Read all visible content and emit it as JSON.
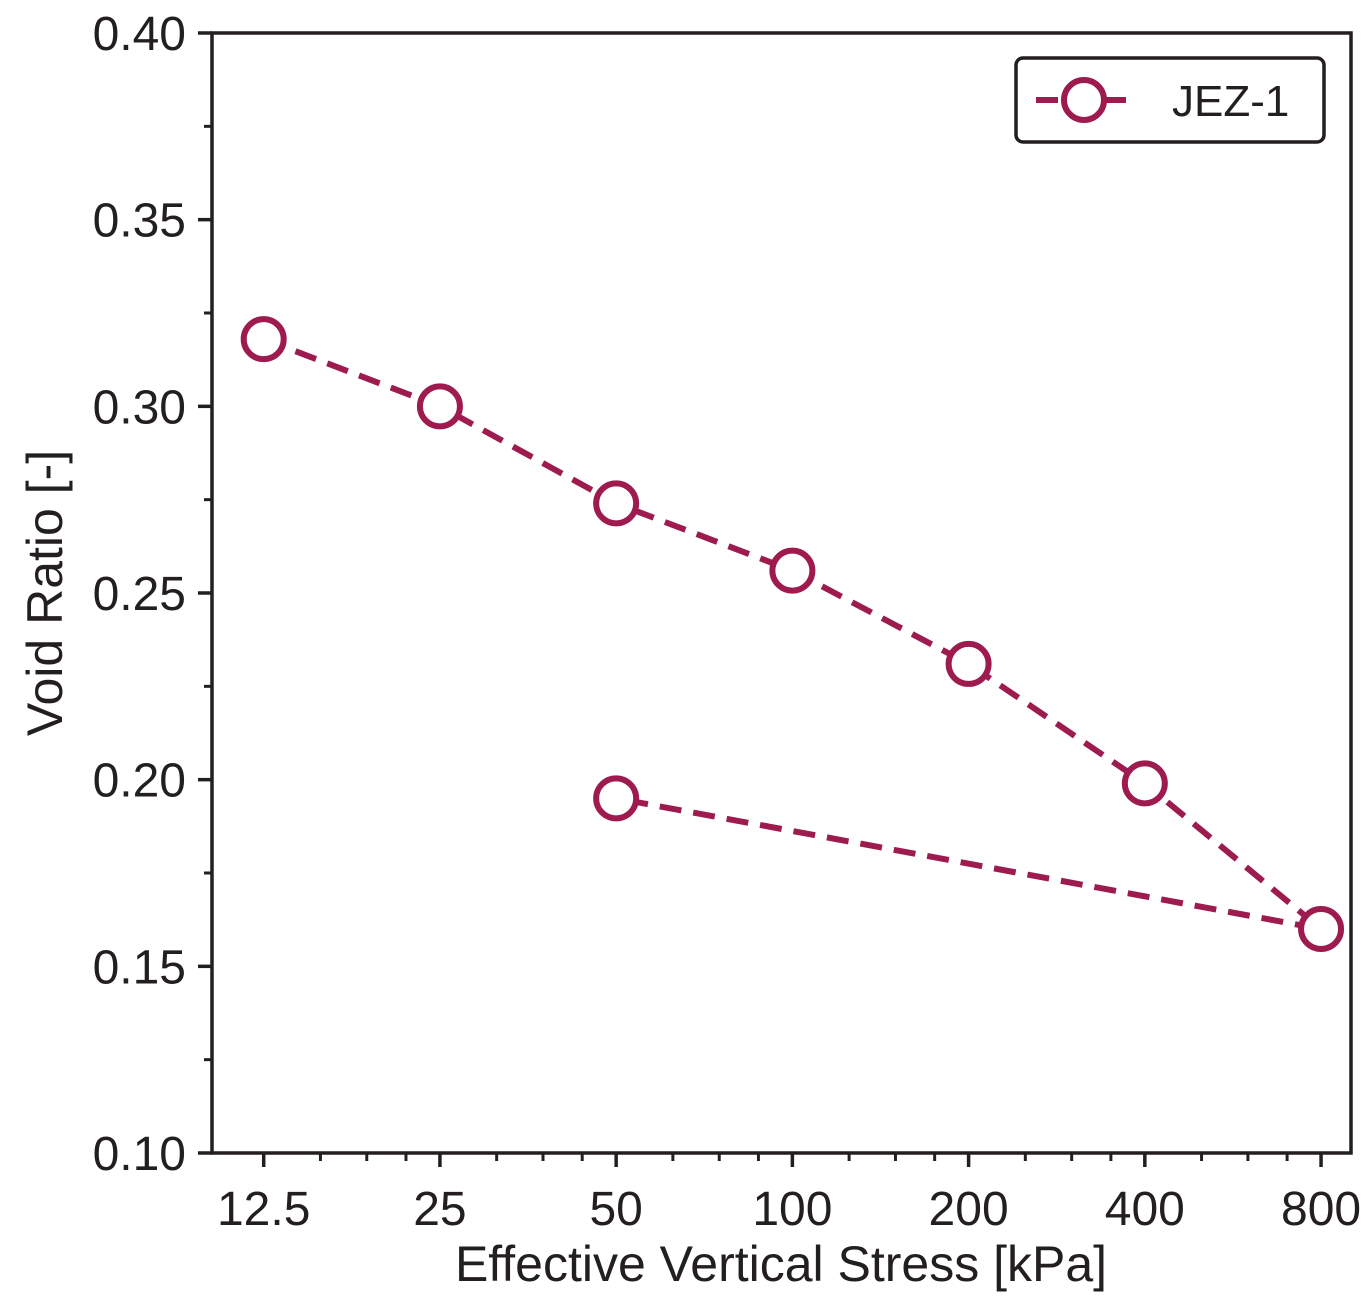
{
  "chart_data": {
    "type": "line",
    "title": "",
    "xlabel": "Effective Vertical Stress [kPa]",
    "ylabel": "Void Ratio [-]",
    "xscale": "log2",
    "xlim": [
      10.2,
      900
    ],
    "ylim": [
      0.1,
      0.4
    ],
    "xticks": [
      12.5,
      25,
      50,
      100,
      200,
      400,
      800
    ],
    "xtick_labels": [
      "12.5",
      "25",
      "50",
      "100",
      "200",
      "400",
      "800"
    ],
    "yticks": [
      0.1,
      0.15,
      0.2,
      0.25,
      0.3,
      0.35,
      0.4
    ],
    "ytick_labels": [
      "0.10",
      "0.15",
      "0.20",
      "0.25",
      "0.30",
      "0.35",
      "0.40"
    ],
    "grid": false,
    "legend_position": "top-right",
    "series": [
      {
        "name": "JEZ-1",
        "color": "#9e1b4f",
        "line_style": "dashed",
        "marker": "open-circle",
        "x": [
          12.5,
          25,
          50,
          100,
          200,
          400,
          800,
          50
        ],
        "y": [
          0.318,
          0.3,
          0.274,
          0.256,
          0.231,
          0.199,
          0.16,
          0.195
        ]
      }
    ]
  }
}
